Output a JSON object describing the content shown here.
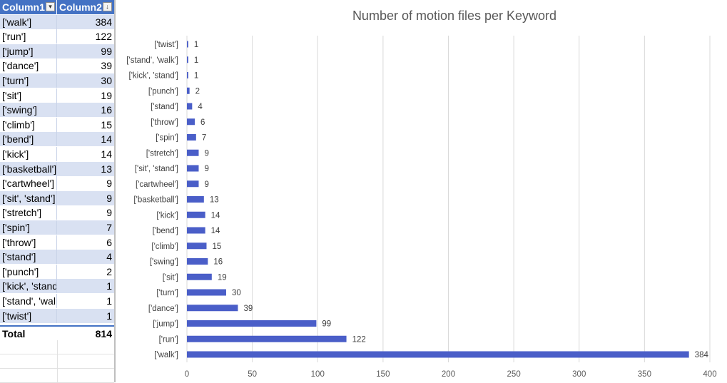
{
  "table": {
    "headers": [
      "Column1",
      "Column2"
    ],
    "rows": [
      {
        "label": "['walk']",
        "value": "384"
      },
      {
        "label": "['run']",
        "value": "122"
      },
      {
        "label": "['jump']",
        "value": "99"
      },
      {
        "label": "['dance']",
        "value": "39"
      },
      {
        "label": "['turn']",
        "value": "30"
      },
      {
        "label": "['sit']",
        "value": "19"
      },
      {
        "label": "['swing']",
        "value": "16"
      },
      {
        "label": "['climb']",
        "value": "15"
      },
      {
        "label": "['bend']",
        "value": "14"
      },
      {
        "label": "['kick']",
        "value": "14"
      },
      {
        "label": "['basketball']",
        "value": "13"
      },
      {
        "label": "['cartwheel']",
        "value": "9"
      },
      {
        "label": "['sit', 'stand']",
        "value": "9"
      },
      {
        "label": "['stretch']",
        "value": "9"
      },
      {
        "label": "['spin']",
        "value": "7"
      },
      {
        "label": "['throw']",
        "value": "6"
      },
      {
        "label": "['stand']",
        "value": "4"
      },
      {
        "label": "['punch']",
        "value": "2"
      },
      {
        "label": "['kick', 'stand']",
        "value": "1"
      },
      {
        "label": "['stand', 'walk']",
        "value": "1"
      },
      {
        "label": "['twist']",
        "value": "1"
      }
    ],
    "total_label": "Total",
    "total_value": "814"
  },
  "colors": {
    "bar": "#4a5ec8",
    "header_bg": "#4472c4",
    "band": "#d9e1f2",
    "gridline": "#d9d9d9"
  },
  "chart_data": {
    "type": "bar",
    "orientation": "horizontal",
    "title": "Number of motion files per Keyword",
    "categories": [
      "['walk']",
      "['run']",
      "['jump']",
      "['dance']",
      "['turn']",
      "['sit']",
      "['swing']",
      "['climb']",
      "['bend']",
      "['kick']",
      "['basketball']",
      "['cartwheel']",
      "['sit', 'stand']",
      "['stretch']",
      "['spin']",
      "['throw']",
      "['stand']",
      "['punch']",
      "['kick', 'stand']",
      "['stand', 'walk']",
      "['twist']"
    ],
    "values": [
      384,
      122,
      99,
      39,
      30,
      19,
      16,
      15,
      14,
      14,
      13,
      9,
      9,
      9,
      7,
      6,
      4,
      2,
      1,
      1,
      1
    ],
    "xlim": [
      0,
      400
    ],
    "xticks": [
      0,
      50,
      100,
      150,
      200,
      250,
      300,
      350,
      400
    ],
    "grid": true,
    "data_labels": true,
    "legend": "none"
  }
}
